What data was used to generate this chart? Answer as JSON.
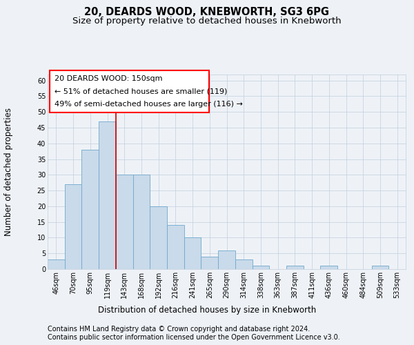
{
  "title": "20, DEARDS WOOD, KNEBWORTH, SG3 6PG",
  "subtitle": "Size of property relative to detached houses in Knebworth",
  "xlabel": "Distribution of detached houses by size in Knebworth",
  "ylabel": "Number of detached properties",
  "categories": [
    "46sqm",
    "70sqm",
    "95sqm",
    "119sqm",
    "143sqm",
    "168sqm",
    "192sqm",
    "216sqm",
    "241sqm",
    "265sqm",
    "290sqm",
    "314sqm",
    "338sqm",
    "363sqm",
    "387sqm",
    "411sqm",
    "436sqm",
    "460sqm",
    "484sqm",
    "509sqm",
    "533sqm"
  ],
  "values": [
    3,
    27,
    38,
    47,
    30,
    30,
    20,
    14,
    10,
    4,
    6,
    3,
    1,
    0,
    1,
    0,
    1,
    0,
    0,
    1,
    0
  ],
  "ylim": [
    0,
    62
  ],
  "yticks": [
    0,
    5,
    10,
    15,
    20,
    25,
    30,
    35,
    40,
    45,
    50,
    55,
    60
  ],
  "bar_color": "#c9daea",
  "bar_edge_color": "#6fa8cc",
  "vline_x_index": 3.5,
  "vline_color": "#cc0000",
  "ann_text_line1": "20 DEARDS WOOD: 150sqm",
  "ann_text_line2": "← 51% of detached houses are smaller (119)",
  "ann_text_line3": "49% of semi-detached houses are larger (116) →",
  "footer_line1": "Contains HM Land Registry data © Crown copyright and database right 2024.",
  "footer_line2": "Contains public sector information licensed under the Open Government Licence v3.0.",
  "background_color": "#eef2f7",
  "grid_color": "#c8d4e0",
  "title_fontsize": 10.5,
  "subtitle_fontsize": 9.5,
  "axis_label_fontsize": 8.5,
  "tick_fontsize": 7,
  "footer_fontsize": 7,
  "ann_fontsize": 8
}
